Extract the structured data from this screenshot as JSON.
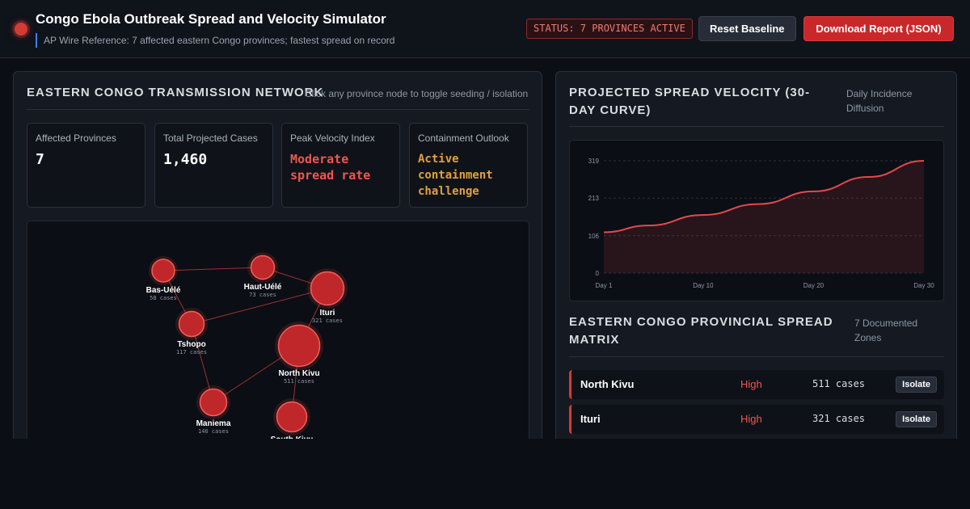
{
  "header": {
    "title": "Congo Ebola Outbreak Spread and Velocity Simulator",
    "subtitle": "AP Wire Reference: 7 affected eastern Congo provinces; fastest spread on record",
    "status": "STATUS: 7 PROVINCES ACTIVE",
    "reset_label": "Reset Baseline",
    "download_label": "Download Report (JSON)",
    "accent_color": "#d33b35"
  },
  "network_panel": {
    "title": "EASTERN CONGO TRANSMISSION NETWORK",
    "hint": "Click any province node to toggle seeding / isolation",
    "stats": [
      {
        "label": "Affected Provinces",
        "value": "7"
      },
      {
        "label": "Total Projected Cases",
        "value": "1,460"
      },
      {
        "label": "Peak Velocity Index",
        "value": "Moderate spread rate"
      },
      {
        "label": "Containment Outlook",
        "value": "Active containment challenge"
      }
    ],
    "nodes": [
      {
        "name": "Bas-Uélé",
        "cases": "58 cases"
      },
      {
        "name": "Haut-Uélé",
        "cases": "73 cases"
      },
      {
        "name": "Ituri",
        "cases": "321 cases"
      },
      {
        "name": "Tshopo",
        "cases": "117 cases"
      },
      {
        "name": "North Kivu",
        "cases": "511 cases"
      },
      {
        "name": "Maniema",
        "cases": "146 cases"
      },
      {
        "name": "South Kivu",
        "cases": ""
      }
    ]
  },
  "velocity_panel": {
    "title": "PROJECTED SPREAD VELOCITY (30-DAY CURVE)",
    "hint": "Daily Incidence Diffusion"
  },
  "chart_data": {
    "type": "area",
    "title": "",
    "xlabel": "",
    "ylabel": "",
    "x_ticks": [
      "Day 1",
      "Day 10",
      "Day 20",
      "Day 30"
    ],
    "y_ticks": [
      "0",
      "106",
      "213",
      "319"
    ],
    "ylim": [
      0,
      319
    ],
    "xlim": [
      1,
      30
    ],
    "x": [
      1,
      5,
      10,
      15,
      20,
      25,
      30
    ],
    "values": [
      116,
      135,
      165,
      196,
      232,
      273,
      319
    ],
    "grid": true,
    "color": "#e5484d"
  },
  "matrix_panel": {
    "title": "EASTERN CONGO PROVINCIAL SPREAD MATRIX",
    "hint": "7 Documented Zones",
    "rows": [
      {
        "name": "North Kivu",
        "level": "High",
        "cases": "511 cases",
        "action": "Isolate"
      },
      {
        "name": "Ituri",
        "level": "High",
        "cases": "321 cases",
        "action": "Isolate"
      }
    ]
  }
}
